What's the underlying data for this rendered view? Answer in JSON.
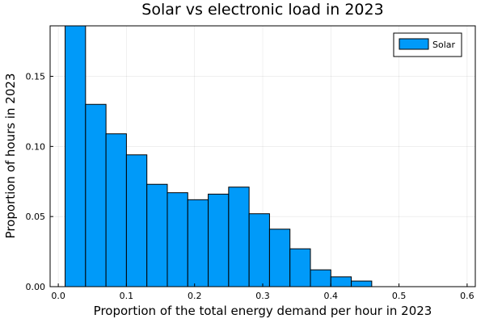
{
  "chart_data": {
    "type": "bar",
    "title": "Solar vs electronic load in 2023",
    "xlabel": "Proportion of the total energy demand per hour in 2023",
    "ylabel": "Proportion of hours in 2023",
    "xlim": [
      -0.012,
      0.612
    ],
    "ylim": [
      0,
      0.186
    ],
    "xticks": [
      0.0,
      0.1,
      0.2,
      0.3,
      0.4,
      0.5,
      0.6
    ],
    "xtick_labels": [
      "0.0",
      "0.1",
      "0.2",
      "0.3",
      "0.4",
      "0.5",
      "0.6"
    ],
    "yticks": [
      0.0,
      0.05,
      0.1,
      0.15
    ],
    "ytick_labels": [
      "0.00",
      "0.05",
      "0.10",
      "0.15"
    ],
    "grid": true,
    "legend_position": "top-right",
    "series": [
      {
        "name": "Solar",
        "color": "#009af9",
        "bins": [
          [
            0.01,
            0.04,
            0.187
          ],
          [
            0.04,
            0.07,
            0.13
          ],
          [
            0.07,
            0.1,
            0.109
          ],
          [
            0.1,
            0.13,
            0.094
          ],
          [
            0.13,
            0.16,
            0.073
          ],
          [
            0.16,
            0.19,
            0.067
          ],
          [
            0.19,
            0.22,
            0.062
          ],
          [
            0.22,
            0.25,
            0.066
          ],
          [
            0.25,
            0.28,
            0.071
          ],
          [
            0.28,
            0.31,
            0.052
          ],
          [
            0.31,
            0.34,
            0.041
          ],
          [
            0.34,
            0.37,
            0.027
          ],
          [
            0.37,
            0.4,
            0.012
          ],
          [
            0.4,
            0.43,
            0.007
          ],
          [
            0.43,
            0.46,
            0.004
          ]
        ]
      }
    ]
  }
}
